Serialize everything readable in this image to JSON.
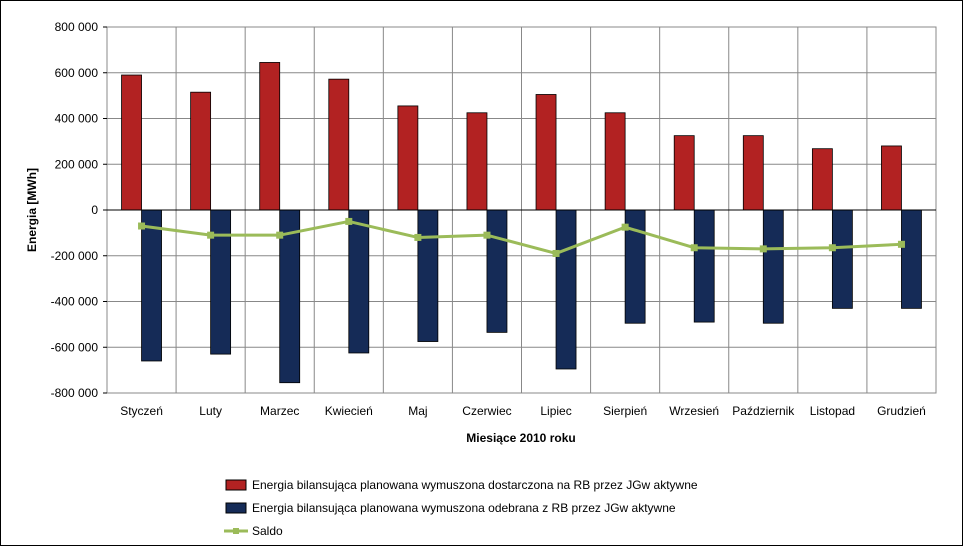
{
  "chart_data": {
    "type": "bar",
    "title": "",
    "xlabel": "Miesiące 2010  roku",
    "ylabel": "Energia [MWh]",
    "ylim": [
      -800000,
      800000
    ],
    "yticks": [
      800000,
      600000,
      400000,
      200000,
      0,
      -200000,
      -400000,
      -600000,
      -800000
    ],
    "ytick_labels": [
      "800 000",
      "600 000",
      "400 000",
      "200 000",
      "0",
      "-200 000",
      "-400 000",
      "-600 000",
      "-800 000"
    ],
    "grid": true,
    "legend_position": "bottom",
    "categories": [
      "Styczeń",
      "Luty",
      "Marzec",
      "Kwiecień",
      "Maj",
      "Czerwiec",
      "Lipiec",
      "Sierpień",
      "Wrzesień",
      "Październik",
      "Listopad",
      "Grudzień"
    ],
    "series": [
      {
        "name": "Energia bilansująca planowana wymuszona dostarczona na RB przez JGw aktywne",
        "kind": "bar",
        "color": "#B22222",
        "values": [
          590000,
          515000,
          645000,
          572000,
          455000,
          425000,
          505000,
          425000,
          325000,
          325000,
          268000,
          280000
        ]
      },
      {
        "name": "Energia bilansująca planowana wymuszona odebrana z RB przez JGw aktywne",
        "kind": "bar",
        "color": "#152B57",
        "values": [
          -660000,
          -630000,
          -755000,
          -625000,
          -575000,
          -535000,
          -695000,
          -495000,
          -490000,
          -495000,
          -430000,
          -430000
        ]
      },
      {
        "name": "Saldo",
        "kind": "line",
        "color": "#9BBB59",
        "values": [
          -70000,
          -110000,
          -110000,
          -50000,
          -120000,
          -110000,
          -190000,
          -75000,
          -165000,
          -170000,
          -165000,
          -150000
        ]
      }
    ]
  }
}
